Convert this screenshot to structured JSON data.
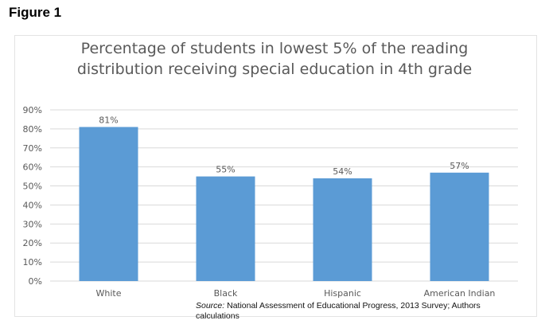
{
  "figure_label": "Figure 1",
  "title_lines": [
    "Percentage of students in lowest 5% of the reading",
    "distribution receiving special education in 4th grade"
  ],
  "source_label": "Source:",
  "source_text": " National Assessment of Educational Progress, 2013 Survey; Authors calculations",
  "colors": {
    "bar": "#5b9bd5",
    "grid": "#d9d9d9",
    "tick_text": "#595959"
  },
  "chart_data": {
    "type": "bar",
    "title": "Percentage of students in lowest 5% of the reading distribution receiving special education in 4th grade",
    "categories": [
      "White",
      "Black",
      "Hispanic",
      "American Indian"
    ],
    "values": [
      81,
      55,
      54,
      57
    ],
    "data_labels": [
      "81%",
      "55%",
      "54%",
      "57%"
    ],
    "y_ticks": [
      "0%",
      "10%",
      "20%",
      "30%",
      "40%",
      "50%",
      "60%",
      "70%",
      "80%",
      "90%"
    ],
    "ylim": [
      0,
      90
    ],
    "xlabel": "",
    "ylabel": "",
    "grid": true,
    "legend": false
  }
}
